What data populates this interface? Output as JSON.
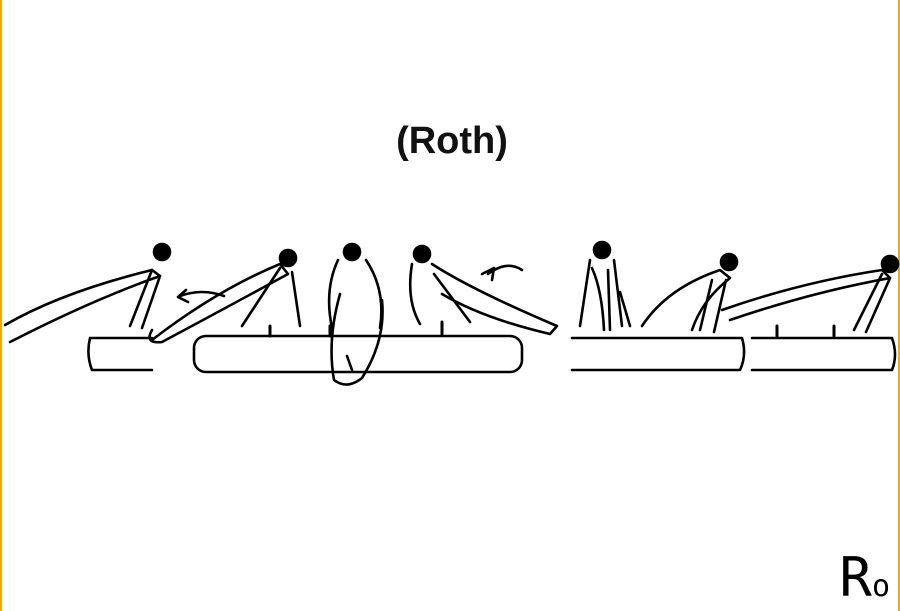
{
  "title": "(Roth)",
  "code": {
    "letter": "R",
    "suffix": "o"
  },
  "colors": {
    "frame": "#f5a800",
    "ink": "#000000",
    "background": "#ffffff"
  },
  "icons": [
    "gymnast-figure",
    "pommel-horse-segment",
    "motion-arrow"
  ]
}
